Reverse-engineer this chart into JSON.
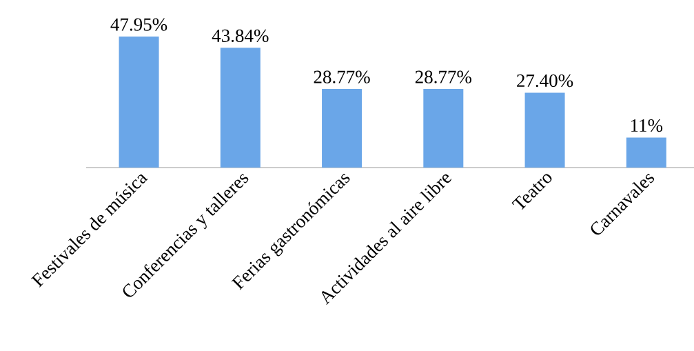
{
  "chart_data": {
    "type": "bar",
    "categories": [
      "Festivales de música",
      "Conferencias y talleres",
      "Ferias gastronómicas",
      "Actividades al aire libre",
      "Teatro",
      "Carnavales"
    ],
    "values": [
      47.95,
      43.84,
      28.77,
      28.77,
      27.4,
      11
    ],
    "value_labels": [
      "47.95%",
      "43.84%",
      "28.77%",
      "28.77%",
      "27.40%",
      "11%"
    ],
    "color": "#6aa6e8"
  }
}
